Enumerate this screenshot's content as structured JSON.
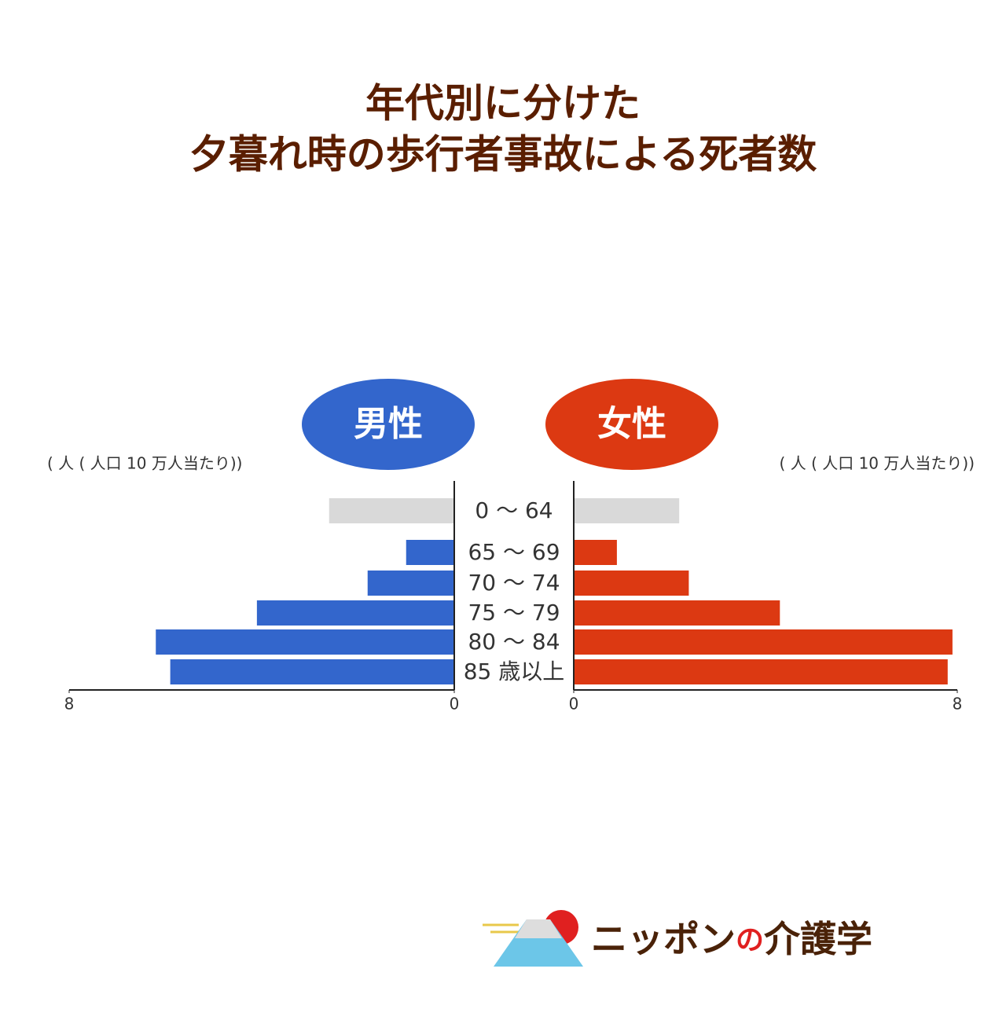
{
  "chart_data": {
    "type": "pyramid",
    "title": [
      "年代別に分けた",
      "夕暮れ時の歩行者事故による死者数"
    ],
    "unit_label": "( 人 ( 人口 10 万人当たり))",
    "categories": [
      "0 ～ 64",
      "65 ～ 69",
      "70 ～ 74",
      "75 ～ 79",
      "80 ～ 84",
      "85 歳以上"
    ],
    "series": [
      {
        "name": "男性",
        "color": "#3366cc",
        "colors": [
          "#d9d9d9",
          "#3366cc",
          "#3366cc",
          "#3366cc",
          "#3366cc",
          "#3366cc"
        ],
        "values": [
          2.6,
          1.0,
          1.8,
          4.1,
          6.2,
          5.9
        ]
      },
      {
        "name": "女性",
        "color": "#dc3912",
        "colors": [
          "#d9d9d9",
          "#dc3912",
          "#dc3912",
          "#dc3912",
          "#dc3912",
          "#dc3912"
        ],
        "values": [
          2.2,
          0.9,
          2.4,
          4.3,
          7.9,
          7.8
        ]
      }
    ],
    "xlim": [
      0,
      8
    ],
    "xticks": [
      0,
      8
    ]
  },
  "logo": {
    "parts": [
      "ニッポン",
      "の",
      "介護学"
    ]
  }
}
